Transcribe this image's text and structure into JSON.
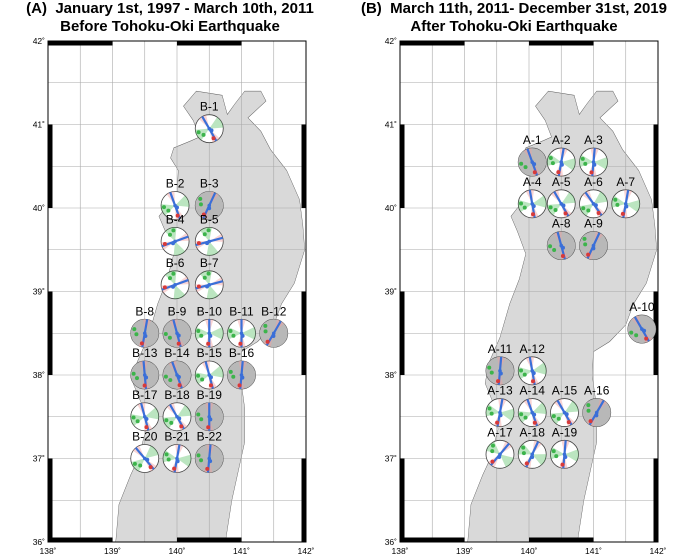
{
  "panelA": {
    "letter": "(A)",
    "title_line1": "January 1st, 1997 - March 10th, 2011",
    "title_line2": "Before Tohoku-Oki Earthquake"
  },
  "panelB": {
    "letter": "(B)",
    "title_line1": "March 11th, 2011- December 31st, 2019",
    "title_line2": "After Tohoku-Oki Earthquake"
  },
  "axes": {
    "x_ticks": [
      "138˚",
      "139˚",
      "140˚",
      "141˚",
      "142˚"
    ],
    "y_ticks": [
      "36˚",
      "37˚",
      "38˚",
      "39˚",
      "40˚",
      "41˚",
      "42˚"
    ]
  },
  "stations_A": [
    {
      "label": "B-1",
      "lon": 140.5,
      "lat": 40.95,
      "dark": false,
      "a": 60
    },
    {
      "label": "B-2",
      "lon": 139.97,
      "lat": 40.03,
      "dark": false,
      "a": 70
    },
    {
      "label": "B-3",
      "lon": 140.5,
      "lat": 40.03,
      "dark": true,
      "a": 115
    },
    {
      "label": "B-4",
      "lon": 139.97,
      "lat": 39.6,
      "dark": false,
      "a": 160
    },
    {
      "label": "B-5",
      "lon": 140.5,
      "lat": 39.6,
      "dark": false,
      "a": 165
    },
    {
      "label": "B-6",
      "lon": 139.97,
      "lat": 39.08,
      "dark": false,
      "a": 160
    },
    {
      "label": "B-7",
      "lon": 140.5,
      "lat": 39.08,
      "dark": false,
      "a": 165
    },
    {
      "label": "B-8",
      "lon": 139.5,
      "lat": 38.5,
      "dark": true,
      "a": 100
    },
    {
      "label": "B-9",
      "lon": 140.0,
      "lat": 38.5,
      "dark": true,
      "a": 75
    },
    {
      "label": "B-10",
      "lon": 140.5,
      "lat": 38.5,
      "dark": false,
      "a": 90
    },
    {
      "label": "B-11",
      "lon": 141.0,
      "lat": 38.5,
      "dark": false,
      "a": 90
    },
    {
      "label": "B-12",
      "lon": 141.5,
      "lat": 38.5,
      "dark": true,
      "a": 120
    },
    {
      "label": "B-13",
      "lon": 139.5,
      "lat": 38.0,
      "dark": true,
      "a": 85
    },
    {
      "label": "B-14",
      "lon": 140.0,
      "lat": 38.0,
      "dark": true,
      "a": 70
    },
    {
      "label": "B-15",
      "lon": 140.5,
      "lat": 38.0,
      "dark": false,
      "a": 75
    },
    {
      "label": "B-16",
      "lon": 141.0,
      "lat": 38.0,
      "dark": true,
      "a": 95
    },
    {
      "label": "B-17",
      "lon": 139.5,
      "lat": 37.5,
      "dark": false,
      "a": 75
    },
    {
      "label": "B-18",
      "lon": 140.0,
      "lat": 37.5,
      "dark": false,
      "a": 60
    },
    {
      "label": "B-19",
      "lon": 140.5,
      "lat": 37.5,
      "dark": true,
      "a": 90
    },
    {
      "label": "B-20",
      "lon": 139.5,
      "lat": 37.0,
      "dark": false,
      "a": 50
    },
    {
      "label": "B-21",
      "lon": 140.0,
      "lat": 37.0,
      "dark": false,
      "a": 100
    },
    {
      "label": "B-22",
      "lon": 140.5,
      "lat": 37.0,
      "dark": true,
      "a": 95
    }
  ],
  "stations_B": [
    {
      "label": "A-1",
      "lon": 140.05,
      "lat": 40.55,
      "dark": true,
      "a": 70
    },
    {
      "label": "A-2",
      "lon": 140.5,
      "lat": 40.55,
      "dark": false,
      "a": 100
    },
    {
      "label": "A-3",
      "lon": 141.0,
      "lat": 40.55,
      "dark": false,
      "a": 95
    },
    {
      "label": "A-4",
      "lon": 140.05,
      "lat": 40.05,
      "dark": false,
      "a": 80
    },
    {
      "label": "A-5",
      "lon": 140.5,
      "lat": 40.05,
      "dark": false,
      "a": 60
    },
    {
      "label": "A-6",
      "lon": 141.0,
      "lat": 40.05,
      "dark": false,
      "a": 55
    },
    {
      "label": "A-7",
      "lon": 141.5,
      "lat": 40.05,
      "dark": false,
      "a": 100
    },
    {
      "label": "A-8",
      "lon": 140.5,
      "lat": 39.55,
      "dark": true,
      "a": 75
    },
    {
      "label": "A-9",
      "lon": 141.0,
      "lat": 39.55,
      "dark": true,
      "a": 115
    },
    {
      "label": "A-10",
      "lon": 141.75,
      "lat": 38.55,
      "dark": true,
      "a": 60
    },
    {
      "label": "A-11",
      "lon": 139.55,
      "lat": 38.05,
      "dark": true,
      "a": 95
    },
    {
      "label": "A-12",
      "lon": 140.05,
      "lat": 38.05,
      "dark": false,
      "a": 80
    },
    {
      "label": "A-13",
      "lon": 139.55,
      "lat": 37.55,
      "dark": false,
      "a": 100
    },
    {
      "label": "A-14",
      "lon": 140.05,
      "lat": 37.55,
      "dark": false,
      "a": 70
    },
    {
      "label": "A-15",
      "lon": 140.55,
      "lat": 37.55,
      "dark": false,
      "a": 60
    },
    {
      "label": "A-16",
      "lon": 141.05,
      "lat": 37.55,
      "dark": true,
      "a": 120
    },
    {
      "label": "A-17",
      "lon": 139.55,
      "lat": 37.05,
      "dark": false,
      "a": 130
    },
    {
      "label": "A-18",
      "lon": 140.05,
      "lat": 37.05,
      "dark": false,
      "a": 115
    },
    {
      "label": "A-19",
      "lon": 140.55,
      "lat": 37.05,
      "dark": false,
      "a": 95
    }
  ],
  "colors": {
    "land": "#d9d9d9",
    "sea": "#ffffff",
    "grid": "#aaaaaa",
    "blue": "#3a6fd8",
    "green": "#3cb44b",
    "red": "#d83a3a",
    "dark_fill": "#b8b8b8"
  }
}
